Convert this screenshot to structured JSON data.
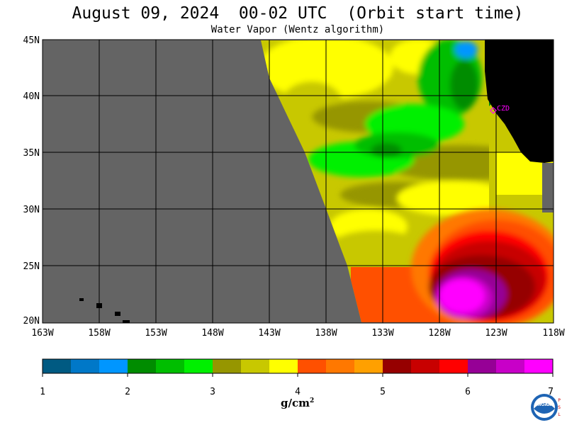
{
  "title": "August 09, 2024  00-02 UTC  (Orbit start time)",
  "subtitle": "Water Vapor (Wentz algorithm)",
  "station_label": "CZD",
  "units_text": "g/cm",
  "units_exp": "2",
  "logo_text": "NOAA",
  "psl_text": [
    "P",
    "S",
    "L"
  ],
  "lat_labels": [
    "45N",
    "40N",
    "35N",
    "30N",
    "25N",
    "20N"
  ],
  "lon_labels": [
    "163W",
    "158W",
    "153W",
    "148W",
    "143W",
    "138W",
    "133W",
    "128W",
    "123W",
    "118W"
  ],
  "colorbar": {
    "tick_labels": [
      "1",
      "2",
      "3",
      "4",
      "5",
      "6",
      "7"
    ],
    "colors": [
      "#005a82",
      "#0078c8",
      "#0096ff",
      "#008c00",
      "#00be00",
      "#00f000",
      "#969600",
      "#c8c800",
      "#ffff00",
      "#ff5000",
      "#ff7800",
      "#ffa000",
      "#960000",
      "#c80000",
      "#ff0000",
      "#960096",
      "#c800c8",
      "#ff00ff"
    ]
  },
  "colors": {
    "land": "#000000",
    "no_data": "#646464",
    "grid": "#000000"
  },
  "chart_data": {
    "type": "heatmap",
    "variable": "Water Vapor",
    "xlim": [
      "163W",
      "118W"
    ],
    "ylim": [
      "20N",
      "45N"
    ],
    "colorbar_range": [
      1,
      7
    ],
    "units": "g/cm²"
  }
}
